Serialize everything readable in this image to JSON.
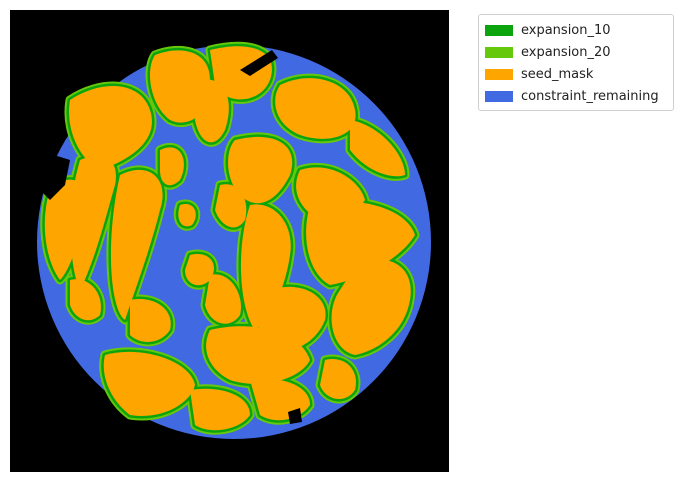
{
  "colors": {
    "background": "#000000",
    "expansion_10": "#0ca40c",
    "expansion_20": "#66c80a",
    "seed_mask": "#ffa500",
    "constraint_remaining": "#4169e1"
  },
  "legend": {
    "items": [
      {
        "label": "expansion_10",
        "color": "#0ca40c"
      },
      {
        "label": "expansion_20",
        "color": "#66c80a"
      },
      {
        "label": "seed_mask",
        "color": "#ffa500"
      },
      {
        "label": "constraint_remaining",
        "color": "#4169e1"
      }
    ]
  }
}
